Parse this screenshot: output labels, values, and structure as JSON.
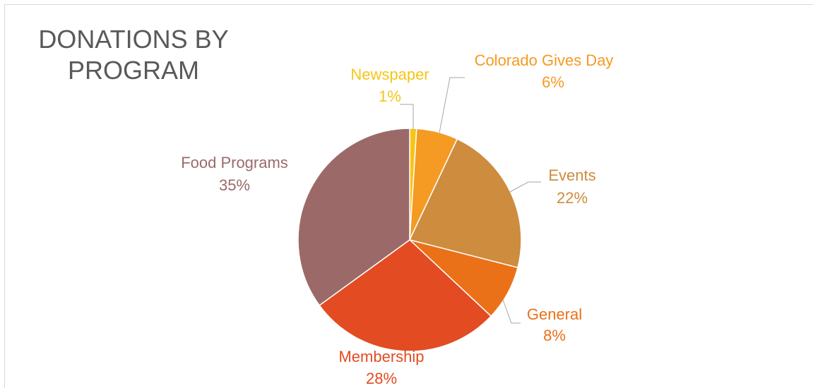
{
  "chart_data": {
    "type": "pie",
    "title": "DONATIONS BY PROGRAM",
    "categories": [
      "Newspaper",
      "Colorado Gives Day",
      "Events",
      "General",
      "Membership",
      "Food Programs"
    ],
    "values": [
      1,
      6,
      22,
      8,
      28,
      35
    ],
    "value_labels": [
      "1%",
      "6%",
      "22%",
      "8%",
      "28%",
      "35%"
    ],
    "colors": [
      "#f5c518",
      "#f59a23",
      "#cd8c3e",
      "#eb7118",
      "#e34b22",
      "#9b6a68"
    ]
  }
}
